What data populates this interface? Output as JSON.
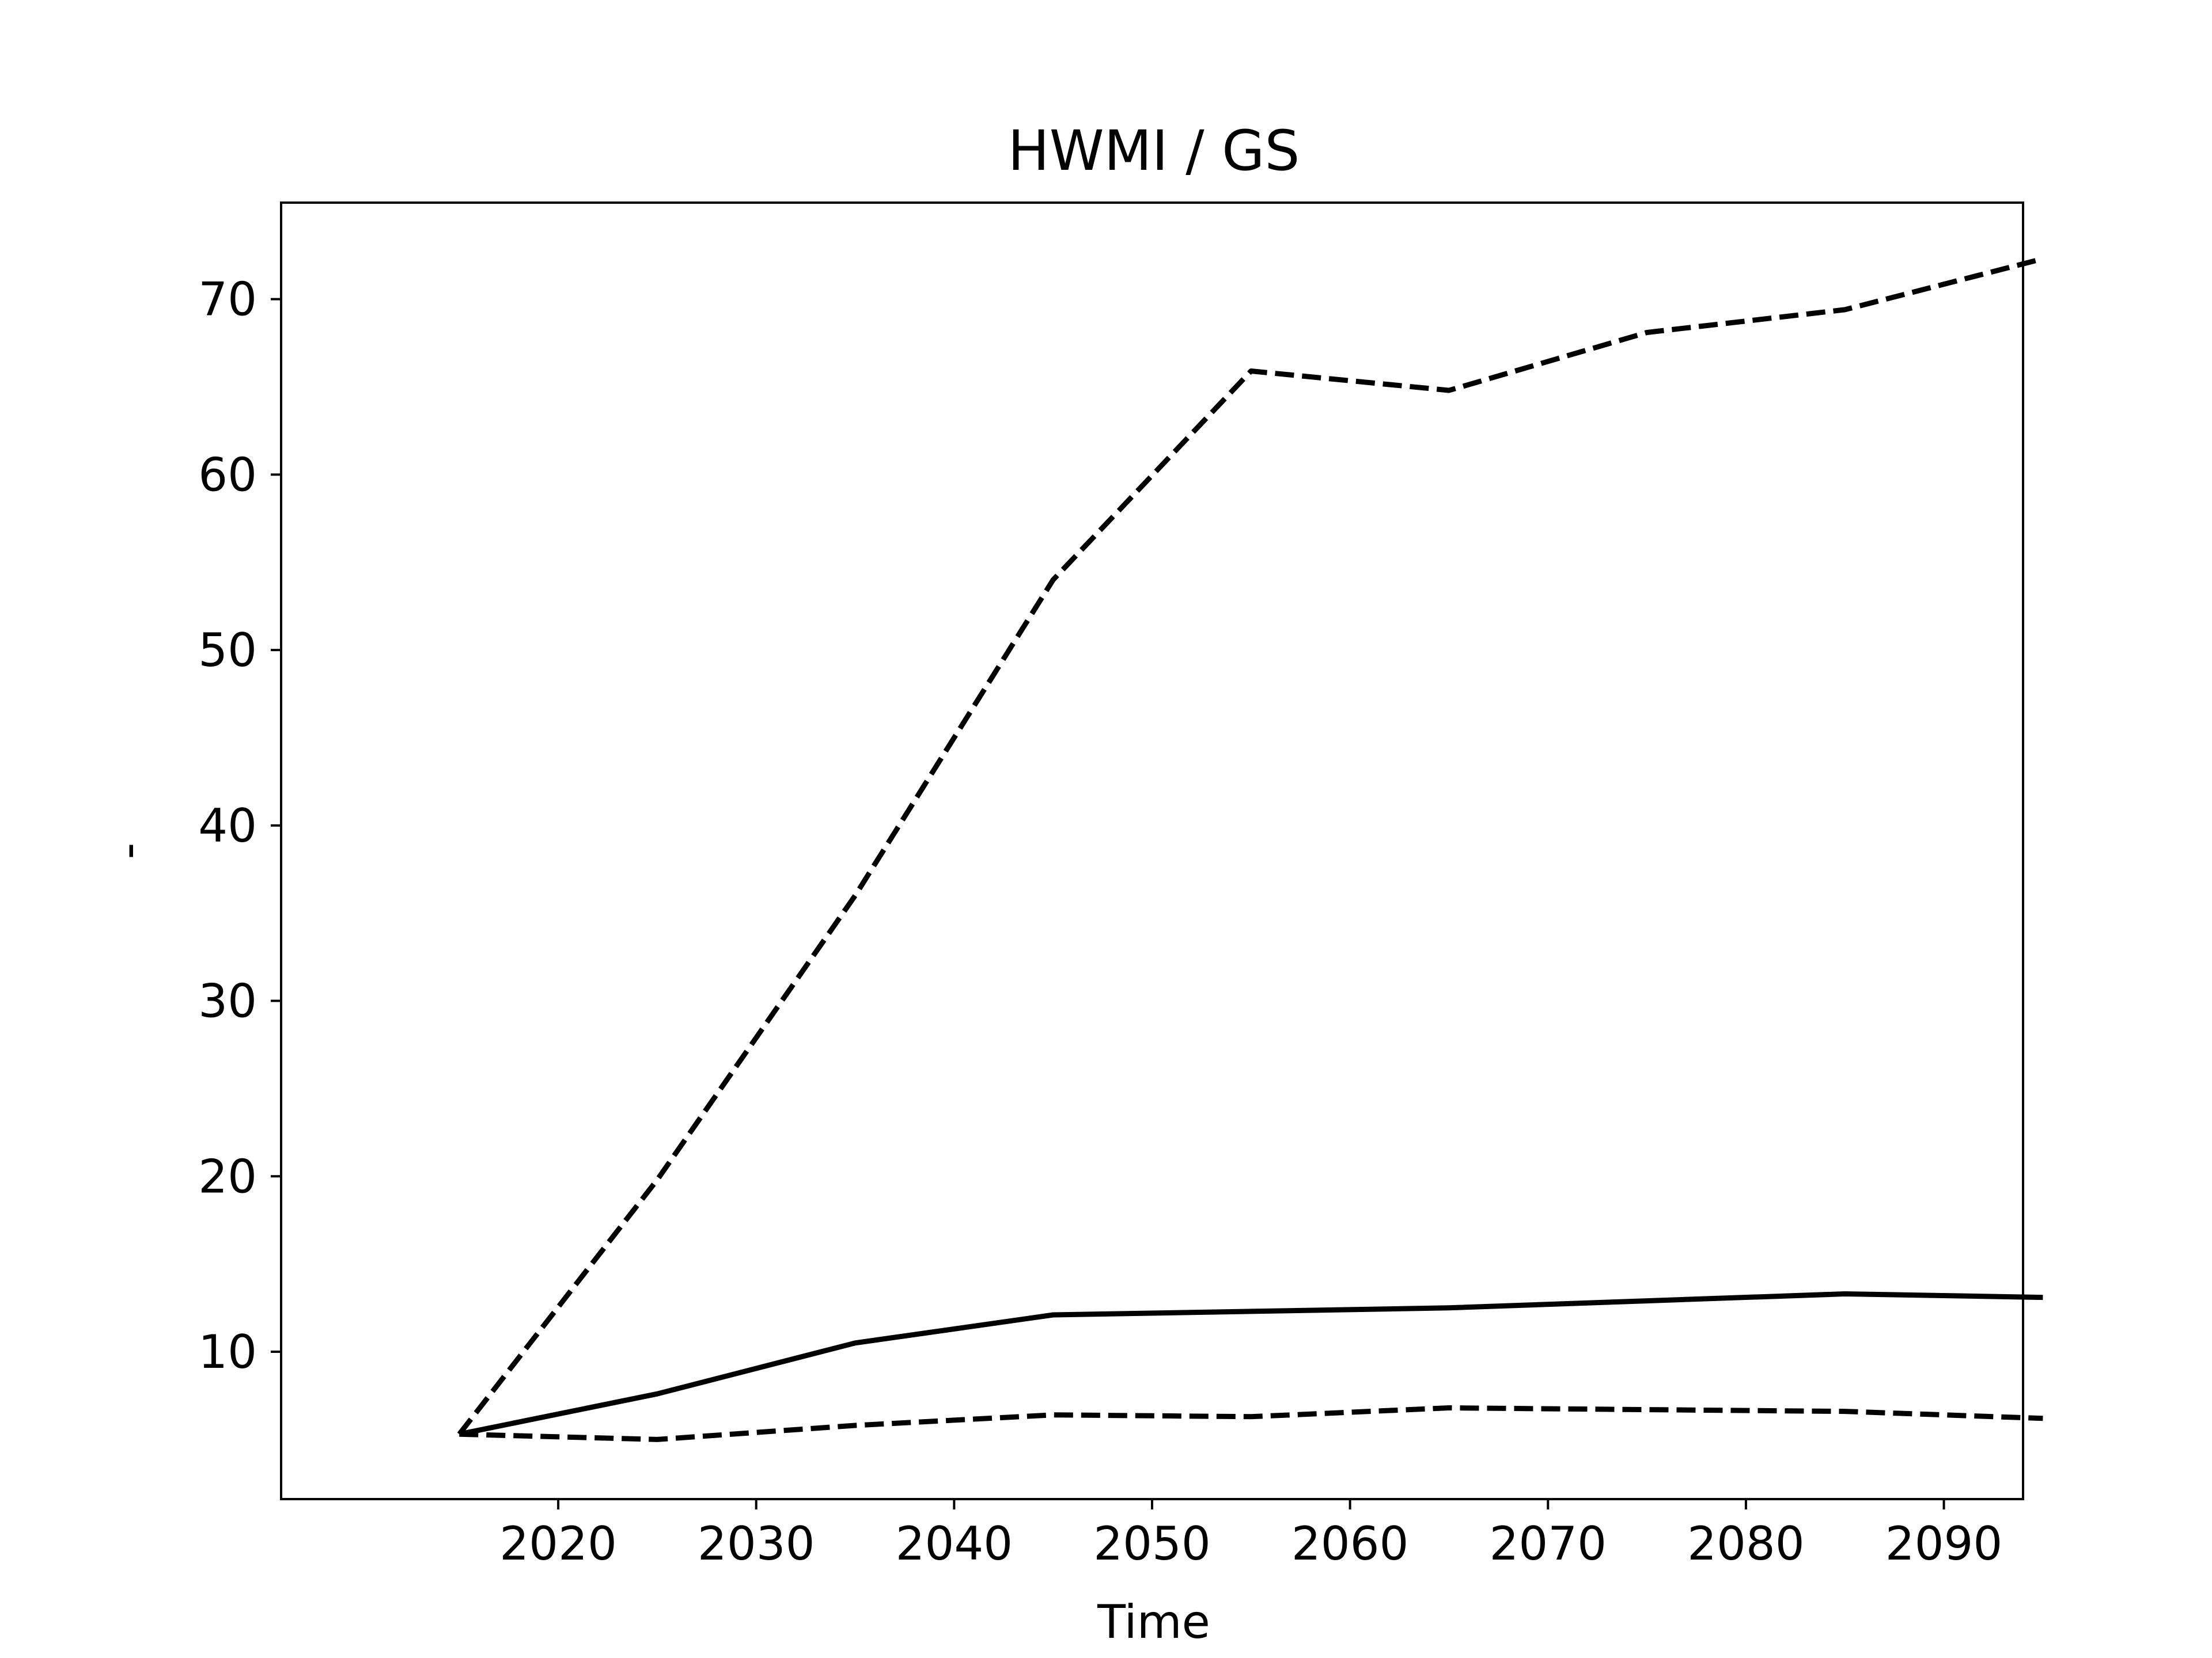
{
  "chart_data": {
    "type": "line",
    "title": "HWMI / GS",
    "xlabel": "Time",
    "ylabel": "-",
    "x": [
      2015,
      2025,
      2035,
      2045,
      2055,
      2065,
      2075,
      2085,
      2095
    ],
    "xlim": [
      2006,
      2094
    ],
    "ylim": [
      1.6,
      75.5
    ],
    "xticks": [
      2020,
      2030,
      2040,
      2050,
      2060,
      2070,
      2080,
      2090
    ],
    "yticks": [
      10,
      20,
      30,
      40,
      50,
      60,
      70
    ],
    "grid": false,
    "legend": "none",
    "series": [
      {
        "style": "dashed",
        "color": "#000000",
        "values": [
          5.3,
          19.8,
          36.0,
          54.0,
          65.9,
          64.8,
          68.1,
          69.4,
          72.3
        ]
      },
      {
        "style": "solid",
        "color": "#000000",
        "values": [
          5.3,
          7.6,
          10.5,
          12.1,
          12.3,
          12.5,
          12.9,
          13.3,
          13.1
        ]
      },
      {
        "style": "dashed",
        "color": "#000000",
        "values": [
          5.3,
          5.0,
          5.8,
          6.4,
          6.3,
          6.8,
          6.7,
          6.6,
          6.2
        ]
      }
    ]
  }
}
